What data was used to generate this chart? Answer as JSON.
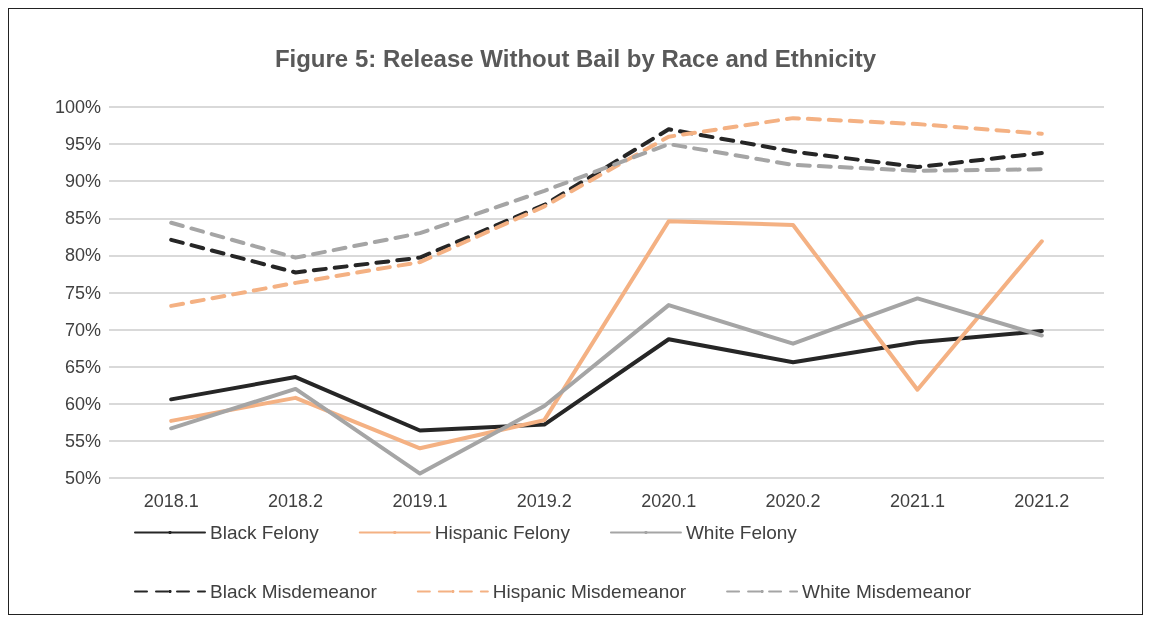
{
  "chart_data": {
    "type": "line",
    "title": "Figure 5: Release Without Bail by Race and Ethnicity",
    "categories": [
      "2018.1",
      "2018.2",
      "2019.1",
      "2019.2",
      "2020.1",
      "2020.2",
      "2021.1",
      "2021.2"
    ],
    "series": [
      {
        "name": "Black Felony",
        "color": "#262626",
        "line_style": "solid",
        "values": [
          60.6,
          63.6,
          56.4,
          57.2,
          68.7,
          65.6,
          68.3,
          69.8
        ]
      },
      {
        "name": "Hispanic Felony",
        "color": "#f4b183",
        "line_style": "solid",
        "values": [
          57.7,
          60.8,
          54.0,
          57.8,
          84.6,
          84.1,
          61.9,
          81.9
        ]
      },
      {
        "name": "White Felony",
        "color": "#a5a5a5",
        "line_style": "solid",
        "values": [
          56.7,
          62.0,
          50.6,
          59.7,
          73.3,
          68.1,
          74.2,
          69.2
        ]
      },
      {
        "name": "Black Misdemeanor",
        "color": "#262626",
        "line_style": "dashed",
        "values": [
          82.1,
          77.7,
          79.7,
          86.8,
          97.0,
          94.0,
          91.9,
          93.8
        ]
      },
      {
        "name": "Hispanic Misdemeanor",
        "color": "#f4b183",
        "line_style": "dashed",
        "values": [
          73.2,
          76.3,
          79.1,
          86.6,
          96.0,
          98.5,
          97.7,
          96.4
        ]
      },
      {
        "name": "White Misdemeanor",
        "color": "#a5a5a5",
        "line_style": "dashed",
        "values": [
          84.4,
          79.7,
          83.0,
          88.7,
          95.0,
          92.2,
          91.4,
          91.6
        ]
      }
    ],
    "ylim": [
      50,
      100
    ],
    "yticks": [
      {
        "value": 50,
        "label": "50%"
      },
      {
        "value": 55,
        "label": "55%"
      },
      {
        "value": 60,
        "label": "60%"
      },
      {
        "value": 65,
        "label": "65%"
      },
      {
        "value": 70,
        "label": "70%"
      },
      {
        "value": 75,
        "label": "75%"
      },
      {
        "value": 80,
        "label": "80%"
      },
      {
        "value": 85,
        "label": "85%"
      },
      {
        "value": 90,
        "label": "90%"
      },
      {
        "value": 95,
        "label": "95%"
      },
      {
        "value": 100,
        "label": "100%"
      }
    ],
    "grid": "y",
    "legend": "bottom",
    "marker": "none"
  }
}
